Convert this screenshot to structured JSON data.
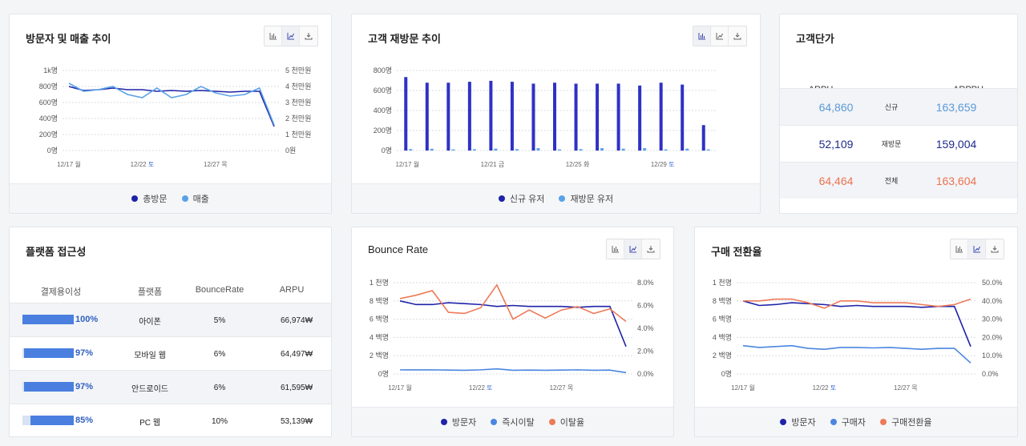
{
  "colors": {
    "navy": "#1f23a8",
    "blue": "#5aa2e8",
    "orange": "#ee7a58",
    "blue2": "#4a86e0"
  },
  "icons": [
    "bar-chart-icon",
    "line-chart-icon",
    "download-icon"
  ],
  "visitors_card": {
    "title": "방문자 및 매출 추이",
    "legend": [
      "총방문",
      "매출"
    ],
    "y_left_ticks": [
      "0명",
      "200명",
      "400명",
      "600명",
      "800명",
      "1k명"
    ],
    "y_right_ticks": [
      "0원",
      "1 천만원",
      "2 천만원",
      "3 천만원",
      "4 천만원",
      "5 천만원"
    ],
    "x_labels": [
      {
        "date": "12/17",
        "day": "월",
        "weekend": false
      },
      {
        "date": "12/22",
        "day": "토",
        "weekend": true
      },
      {
        "date": "12/27",
        "day": "목",
        "weekend": false
      }
    ]
  },
  "revisit_card": {
    "title": "고객 재방문 추이",
    "legend": [
      "신규 유저",
      "재방문 유저"
    ],
    "y_ticks": [
      "0명",
      "200명",
      "400명",
      "600명",
      "800명"
    ],
    "x_labels": [
      {
        "date": "12/17",
        "day": "월",
        "weekend": false
      },
      {
        "date": "12/21",
        "day": "금",
        "weekend": false
      },
      {
        "date": "12/25",
        "day": "화",
        "weekend": false
      },
      {
        "date": "12/29",
        "day": "토",
        "weekend": true
      }
    ]
  },
  "arpu_card": {
    "title": "고객단가",
    "col1": "ARPU",
    "col2": "ARPPU",
    "rows": [
      {
        "arpu": "64,860",
        "label": "신규",
        "arppu": "163,659",
        "color": "#5a9ad8"
      },
      {
        "arpu": "52,109",
        "label": "재방문",
        "arppu": "159,004",
        "color": "#1d2a8a"
      },
      {
        "arpu": "64,464",
        "label": "전체",
        "arppu": "163,604",
        "color": "#ec7250"
      }
    ]
  },
  "platform_card": {
    "title": "플랫폼 접근성",
    "headers": [
      "결제용이성",
      "플랫폼",
      "BounceRate",
      "ARPU"
    ],
    "rows": [
      {
        "pct": "100%",
        "ratio": 1.0,
        "platform": "아이폰",
        "bounce": "5%",
        "arpu": "66,974₩"
      },
      {
        "pct": "97%",
        "ratio": 0.97,
        "platform": "모바일 웹",
        "bounce": "6%",
        "arpu": "64,497₩"
      },
      {
        "pct": "97%",
        "ratio": 0.97,
        "platform": "안드로이드",
        "bounce": "6%",
        "arpu": "61,595₩"
      },
      {
        "pct": "85%",
        "ratio": 0.85,
        "platform": "PC 웹",
        "bounce": "10%",
        "arpu": "53,139₩"
      }
    ]
  },
  "bounce_card": {
    "title": "Bounce Rate",
    "legend": [
      "방문자",
      "즉시이탈",
      "이탈율"
    ],
    "y_left_ticks": [
      "0명",
      "2 백명",
      "4 백명",
      "6 백명",
      "8 백명",
      "1 천명"
    ],
    "y_right_ticks": [
      "0.0%",
      "2.0%",
      "4.0%",
      "6.0%",
      "8.0%"
    ],
    "x_labels": [
      {
        "date": "12/17",
        "day": "월",
        "weekend": false
      },
      {
        "date": "12/22",
        "day": "토",
        "weekend": true
      },
      {
        "date": "12/27",
        "day": "목",
        "weekend": false
      }
    ]
  },
  "conversion_card": {
    "title": "구매 전환율",
    "legend": [
      "방문자",
      "구매자",
      "구매전환율"
    ],
    "y_left_ticks": [
      "0명",
      "2 백명",
      "4 백명",
      "6 백명",
      "8 백명",
      "1 천명"
    ],
    "y_right_ticks": [
      "0.0%",
      "10.0%",
      "20.0%",
      "30.0%",
      "40.0%",
      "50.0%"
    ],
    "x_labels": [
      {
        "date": "12/17",
        "day": "월",
        "weekend": false
      },
      {
        "date": "12/22",
        "day": "토",
        "weekend": true
      },
      {
        "date": "12/27",
        "day": "목",
        "weekend": false
      }
    ]
  },
  "chart_data": [
    {
      "type": "line",
      "x": [
        "12/17",
        "12/18",
        "12/19",
        "12/20",
        "12/21",
        "12/22",
        "12/23",
        "12/24",
        "12/25",
        "12/26",
        "12/27",
        "12/28",
        "12/29",
        "12/30",
        "12/31"
      ],
      "series": [
        {
          "name": "총방문",
          "axis": "left",
          "values": [
            800,
            750,
            760,
            780,
            760,
            760,
            740,
            750,
            740,
            750,
            740,
            730,
            740,
            740,
            300
          ]
        },
        {
          "name": "매출",
          "axis": "right",
          "values": [
            4.2,
            3.7,
            3.8,
            4.0,
            3.5,
            3.3,
            3.9,
            3.3,
            3.5,
            4.0,
            3.6,
            3.4,
            3.5,
            3.9,
            1.6
          ]
        }
      ],
      "ylim_left": [
        0,
        1000
      ],
      "ylim_right": [
        0,
        5
      ]
    },
    {
      "type": "bar",
      "categories": [
        "12/17",
        "12/18",
        "12/19",
        "12/20",
        "12/21",
        "12/22",
        "12/23",
        "12/24",
        "12/25",
        "12/26",
        "12/27",
        "12/28",
        "12/29",
        "12/30",
        "12/31"
      ],
      "series": [
        {
          "name": "신규 유저",
          "values": [
            780,
            720,
            720,
            730,
            740,
            730,
            710,
            720,
            710,
            710,
            710,
            690,
            720,
            700,
            270
          ]
        },
        {
          "name": "재방문 유저",
          "values": [
            15,
            18,
            12,
            14,
            20,
            15,
            25,
            12,
            15,
            25,
            20,
            25,
            12,
            20,
            12
          ]
        }
      ],
      "ylim": [
        0,
        850
      ]
    },
    {
      "type": "line",
      "x": [
        "12/17",
        "12/18",
        "12/19",
        "12/20",
        "12/21",
        "12/22",
        "12/23",
        "12/24",
        "12/25",
        "12/26",
        "12/27",
        "12/28",
        "12/29",
        "12/30",
        "12/31"
      ],
      "series": [
        {
          "name": "방문자",
          "axis": "left",
          "values": [
            800,
            760,
            760,
            780,
            770,
            760,
            740,
            750,
            740,
            740,
            740,
            730,
            740,
            740,
            300
          ]
        },
        {
          "name": "즉시이탈",
          "axis": "left",
          "values": [
            45,
            44,
            45,
            42,
            40,
            45,
            55,
            40,
            42,
            40,
            42,
            45,
            40,
            42,
            15
          ]
        },
        {
          "name": "이탈율",
          "axis": "right",
          "values": [
            6.6,
            6.9,
            7.3,
            5.4,
            5.3,
            5.8,
            7.8,
            4.8,
            5.6,
            4.9,
            5.6,
            5.9,
            5.3,
            5.7,
            4.6
          ]
        }
      ],
      "ylim_left": [
        0,
        1000
      ],
      "ylim_right": [
        0,
        8
      ]
    },
    {
      "type": "line",
      "x": [
        "12/17",
        "12/18",
        "12/19",
        "12/20",
        "12/21",
        "12/22",
        "12/23",
        "12/24",
        "12/25",
        "12/26",
        "12/27",
        "12/28",
        "12/29",
        "12/30",
        "12/31"
      ],
      "series": [
        {
          "name": "방문자",
          "axis": "left",
          "values": [
            800,
            750,
            760,
            780,
            770,
            760,
            740,
            750,
            740,
            740,
            740,
            730,
            740,
            740,
            300
          ]
        },
        {
          "name": "구매자",
          "axis": "left",
          "values": [
            310,
            290,
            300,
            310,
            280,
            270,
            290,
            290,
            285,
            290,
            280,
            270,
            280,
            280,
            120
          ]
        },
        {
          "name": "구매전환율",
          "axis": "right",
          "values": [
            40,
            40,
            41,
            41,
            39,
            36,
            40,
            40,
            39,
            39,
            39,
            38,
            37,
            38,
            41
          ]
        }
      ],
      "ylim_left": [
        0,
        1000
      ],
      "ylim_right": [
        0,
        50
      ]
    }
  ]
}
